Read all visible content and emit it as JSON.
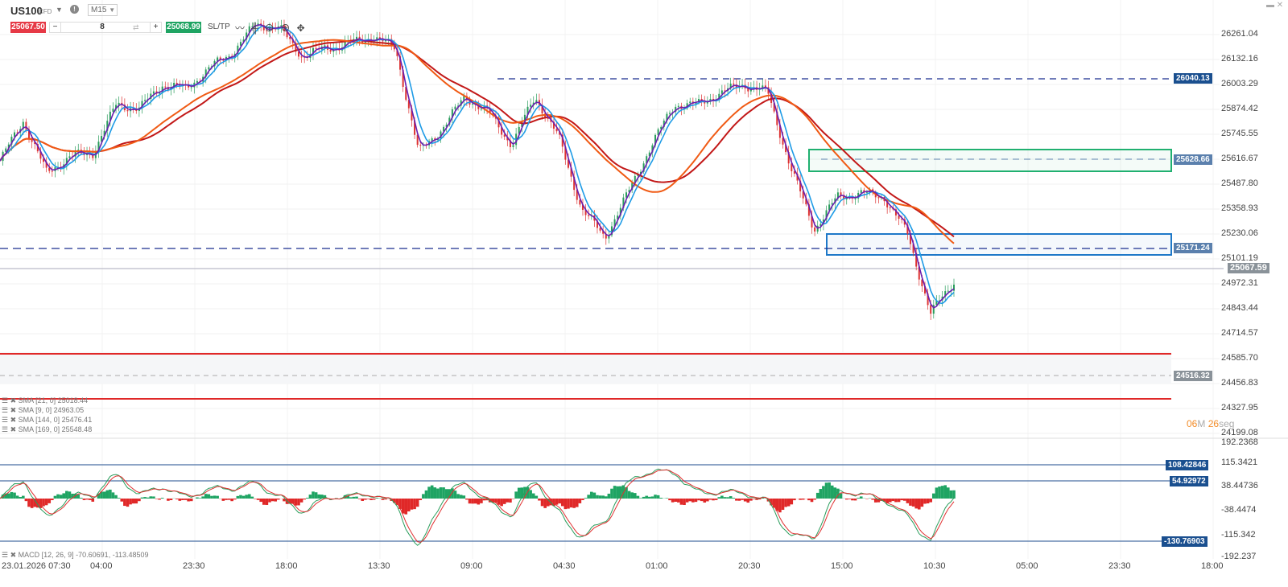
{
  "toolbar": {
    "symbol": "US100",
    "symbol_type": "CFD",
    "timeframe": "M15",
    "sell_price": "25067.50",
    "quantity": "8",
    "buy_price": "25068.99",
    "sltp_label": "SL/TP",
    "tools": [
      "line-chart-icon",
      "candles-icon",
      "zoom-out-icon",
      "zoom-in-icon",
      "move-icon"
    ]
  },
  "window_controls": {
    "minimize": "▬",
    "close": "✕"
  },
  "legend": [
    {
      "label": "SMA [21, 0] 25018.44"
    },
    {
      "label": "SMA [9, 0] 24963.05"
    },
    {
      "label": "SMA [144, 0] 25476.41"
    },
    {
      "label": "SMA [169, 0] 25548.48"
    }
  ],
  "macd_legend": "MACD [12, 26, 9] -70.60691, -113.48509",
  "price_axis": [
    "26261.04",
    "26132.16",
    "26003.29",
    "25874.42",
    "25745.55",
    "25616.67",
    "25487.80",
    "25358.93",
    "25230.06",
    "25101.19",
    "24972.31",
    "24843.44",
    "24714.57",
    "24585.70",
    "24456.83",
    "24327.95",
    "24199.08"
  ],
  "macd_axis": [
    "192.2368",
    "115.3421",
    "38.44736",
    "-38.4474",
    "-115.342",
    "-192.237"
  ],
  "time_axis": [
    "23.01.2026 07:30",
    "04:00",
    "23:30",
    "18:00",
    "13:30",
    "09:00",
    "04:30",
    "01:00",
    "20:30",
    "15:00",
    "10:30",
    "05:00",
    "23:30",
    "18:00"
  ],
  "levels": {
    "resistance": "26040.13",
    "green_zone": "25628.66",
    "blue_zone": "25171.24",
    "current": "25067.59",
    "support": "24516.32"
  },
  "macd_levels": [
    "108.42846",
    "54.92972",
    "-130.76903"
  ],
  "timer": {
    "minutes": "06",
    "m_label": "M",
    "seconds": "26",
    "s_label": "seg"
  },
  "colors": {
    "sell": "#e63946",
    "buy": "#1fa463",
    "sma9": "#6a1fb0",
    "sma21": "#1e9be6",
    "sma144": "#f05a14",
    "sma169": "#c21818",
    "level_blue": "#1a4f8f"
  },
  "chart_data": {
    "type": "candlestick",
    "symbol": "US100",
    "ylim": [
      24199.08,
      26261.04
    ],
    "close_path": [
      25608,
      25816,
      25546,
      25629,
      25650,
      25899,
      25879,
      26003,
      25982,
      26086,
      26170,
      26315,
      26294,
      26149,
      26190,
      26211,
      26253,
      26190,
      25650,
      25775,
      25941,
      25858,
      25691,
      25941,
      25733,
      25359,
      25213,
      25442,
      25691,
      25899,
      25899,
      25962,
      26003,
      25962,
      25567,
      25255,
      25421,
      25442,
      25421,
      25234,
      24819,
      24985
    ]
  }
}
